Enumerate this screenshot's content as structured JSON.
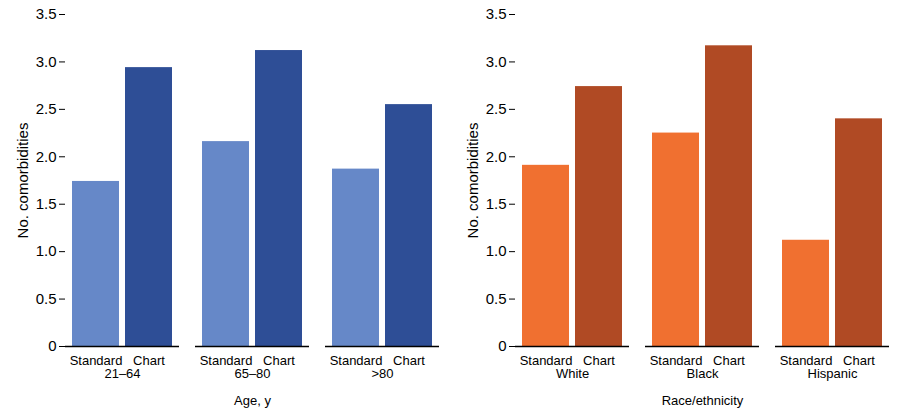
{
  "chart_data": [
    {
      "type": "bar",
      "x_label": "Age, y",
      "y_label": "No. comorbidities",
      "categories": [
        "21–64",
        "65–80",
        ">80"
      ],
      "series": [
        {
          "name": "Standard",
          "color": "#6688c8",
          "values": [
            1.74,
            2.16,
            1.87
          ]
        },
        {
          "name": "Chart",
          "color": "#2e4e96",
          "values": [
            2.94,
            3.12,
            2.55
          ]
        }
      ],
      "ylim": [
        0,
        3.5
      ],
      "yticks": [
        0,
        0.5,
        {
          "value": 1,
          "label": "1.0"
        },
        1.5,
        {
          "value": 2,
          "label": "2.0"
        },
        2.5,
        {
          "value": 3,
          "label": "3.0"
        },
        3.5
      ],
      "grid": false
    },
    {
      "type": "bar",
      "x_label": "Race/ethnicity",
      "y_label": "No. comorbidities",
      "categories": [
        "White",
        "Black",
        "Hispanic"
      ],
      "series": [
        {
          "name": "Standard",
          "color": "#f07030",
          "values": [
            1.91,
            2.25,
            1.12
          ]
        },
        {
          "name": "Chart",
          "color": "#b04a24",
          "values": [
            2.74,
            3.17,
            2.4
          ]
        }
      ],
      "ylim": [
        0,
        3.5
      ],
      "yticks": [
        0,
        0.5,
        {
          "value": 1,
          "label": "1.0"
        },
        1.5,
        {
          "value": 2,
          "label": "2.0"
        },
        2.5,
        {
          "value": 3,
          "label": "3.0"
        },
        3.5
      ],
      "grid": false
    }
  ]
}
